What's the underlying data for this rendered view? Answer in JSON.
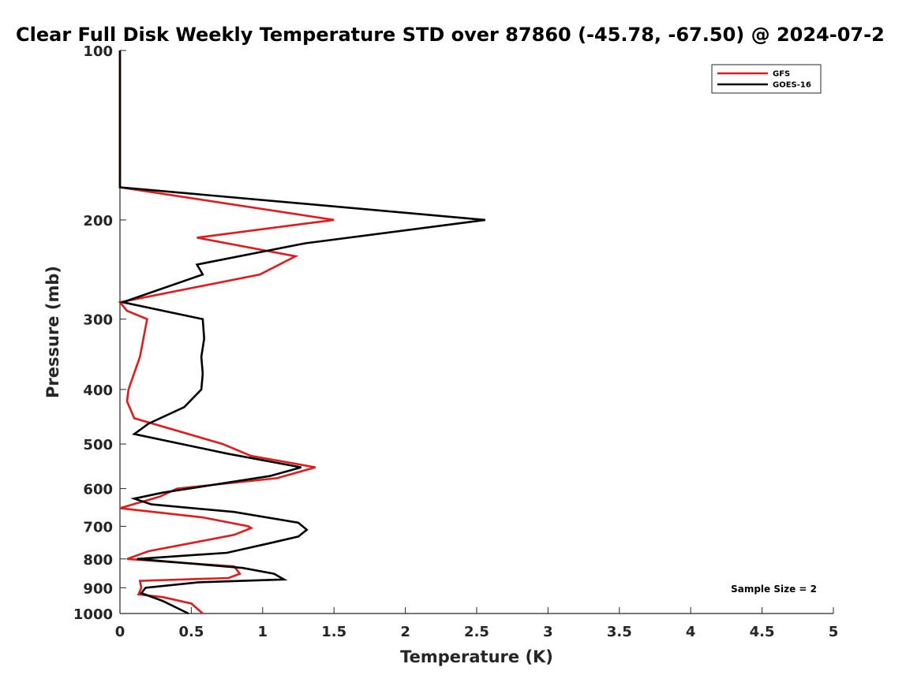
{
  "chart_data": {
    "type": "line",
    "title": "Clear Full Disk Weekly Temperature STD over 87860 (-45.78, -67.50) @ 2024-07-2",
    "xlabel": "Temperature (K)",
    "ylabel": "Pressure (mb)",
    "xlim": [
      0,
      5
    ],
    "ylim": [
      100,
      1000
    ],
    "y_scale": "log",
    "y_reversed": true,
    "x_ticks": [
      "0",
      "0.5",
      "1",
      "1.5",
      "2",
      "2.5",
      "3",
      "3.5",
      "4",
      "4.5",
      "5"
    ],
    "y_ticks": [
      "100",
      "200",
      "300",
      "400",
      "500",
      "600",
      "700",
      "800",
      "900",
      "1000"
    ],
    "grid": false,
    "legend_position": "top-right",
    "series": [
      {
        "name": "GFS",
        "color": "#e41a1a",
        "points": [
          [
            0,
            100
          ],
          [
            0,
            150
          ],
          [
            0,
            175
          ],
          [
            1.5,
            200
          ],
          [
            0.54,
            215
          ],
          [
            1.23,
            232
          ],
          [
            0.98,
            250
          ],
          [
            0,
            280
          ],
          [
            0.05,
            290
          ],
          [
            0.19,
            300
          ],
          [
            0.14,
            350
          ],
          [
            0.06,
            400
          ],
          [
            0.05,
            420
          ],
          [
            0.1,
            450
          ],
          [
            0.72,
            500
          ],
          [
            0.92,
            525
          ],
          [
            1.37,
            550
          ],
          [
            1.1,
            575
          ],
          [
            0.4,
            600
          ],
          [
            0.28,
            620
          ],
          [
            0,
            650
          ],
          [
            0.58,
            675
          ],
          [
            0.9,
            700
          ],
          [
            0.92,
            705
          ],
          [
            0.8,
            725
          ],
          [
            0.2,
            775
          ],
          [
            0.05,
            800
          ],
          [
            0.8,
            825
          ],
          [
            0.84,
            850
          ],
          [
            0.76,
            865
          ],
          [
            0.14,
            875
          ],
          [
            0.15,
            900
          ],
          [
            0.13,
            925
          ],
          [
            0.3,
            935
          ],
          [
            0.5,
            960
          ],
          [
            0.58,
            1000
          ]
        ]
      },
      {
        "name": "GOES-16",
        "color": "#000000",
        "points": [
          [
            0,
            100
          ],
          [
            0,
            150
          ],
          [
            0,
            175
          ],
          [
            2.56,
            200
          ],
          [
            1.3,
            220
          ],
          [
            0.54,
            240
          ],
          [
            0.58,
            250
          ],
          [
            0.02,
            280
          ],
          [
            0.58,
            300
          ],
          [
            0.59,
            325
          ],
          [
            0.57,
            350
          ],
          [
            0.58,
            375
          ],
          [
            0.57,
            400
          ],
          [
            0.45,
            430
          ],
          [
            0.2,
            460
          ],
          [
            0.1,
            480
          ],
          [
            0.75,
            520
          ],
          [
            1.27,
            550
          ],
          [
            1.05,
            570
          ],
          [
            0.3,
            610
          ],
          [
            0.1,
            625
          ],
          [
            0.22,
            640
          ],
          [
            0.8,
            660
          ],
          [
            1.25,
            690
          ],
          [
            1.31,
            710
          ],
          [
            1.25,
            730
          ],
          [
            1.05,
            750
          ],
          [
            0.75,
            780
          ],
          [
            0.12,
            800
          ],
          [
            0.86,
            830
          ],
          [
            1.08,
            850
          ],
          [
            1.15,
            870
          ],
          [
            0.55,
            880
          ],
          [
            0.18,
            900
          ],
          [
            0.15,
            920
          ],
          [
            0.3,
            950
          ],
          [
            0.48,
            1000
          ]
        ]
      }
    ],
    "annotations": [
      "Sample Size = 2"
    ]
  }
}
